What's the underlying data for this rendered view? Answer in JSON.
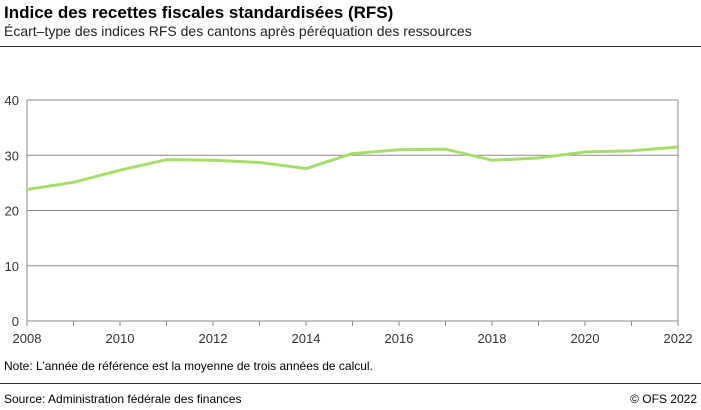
{
  "title": "Indice des recettes fiscales standardisées (RFS)",
  "subtitle": "Écart–type des indices RFS des cantons après péréquation des ressources",
  "note": "Note: L’année de référence est la moyenne de trois années de calcul.",
  "source": "Source: Administration fédérale des finances",
  "copyright": "© OFS 2022",
  "chart_data": {
    "type": "line",
    "x": [
      2008,
      2009,
      2010,
      2011,
      2012,
      2013,
      2014,
      2015,
      2016,
      2017,
      2018,
      2019,
      2020,
      2021,
      2022
    ],
    "series": [
      {
        "values": [
          23.8,
          25.1,
          27.3,
          29.2,
          29.1,
          28.7,
          27.6,
          30.3,
          31.0,
          31.1,
          29.1,
          29.5,
          30.6,
          30.8,
          31.5
        ],
        "color": "#a8dc6a"
      }
    ],
    "xlim": [
      2008,
      2022
    ],
    "ylim": [
      0,
      40
    ],
    "xticks": [
      "2008",
      "2010",
      "2012",
      "2014",
      "2016",
      "2018",
      "2020",
      "2022"
    ],
    "yticks": [
      "0",
      "10",
      "20",
      "30",
      "40"
    ],
    "grid": true,
    "legend": "none"
  }
}
